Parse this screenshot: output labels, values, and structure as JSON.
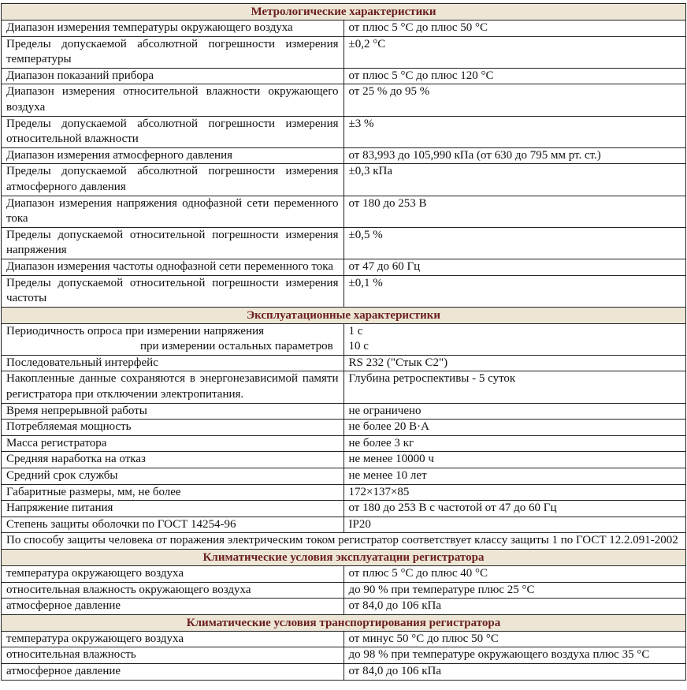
{
  "sections": [
    {
      "title": "Метрологические характеристики",
      "rows": [
        [
          "Диапазон измерения температуры окружающего воздуха",
          "от плюс 5 °C до плюс 50 °C"
        ],
        [
          "Пределы допускаемой абсолютной погрешности измерения температуры",
          "±0,2 °C"
        ],
        [
          "Диапазон показаний прибора",
          "от плюс 5 °C до плюс 120 °C"
        ],
        [
          "Диапазон измерения  относительной  влажности окружающего  воздуха",
          "от  25 %  до 95 %"
        ],
        [
          "Пределы допускаемой абсолютной погрешности измерения относительной влажности",
          "±3 %"
        ],
        [
          "Диапазон  измерения  атмосферного  давления",
          "от 83,993 до 105,990 кПа (от 630 до 795 мм рт. ст.)"
        ],
        [
          "Пределы допускаемой абсолютной погрешности измерения атмосферного давления",
          "±0,3 кПа"
        ],
        [
          "Диапазон измерения напряжения однофазной сети переменного тока",
          "от 180 до 253 В"
        ],
        [
          "Пределы допускаемой  относительной погрешности измерения напряжения",
          "±0,5 %"
        ],
        [
          "Диапазон измерения частоты однофазной сети переменного тока",
          "от 47 до 60 Гц"
        ],
        [
          "Пределы допускаемой относительной погрешности измерения частоты",
          "±0,1 %"
        ]
      ]
    },
    {
      "title": "Эксплуатационные характеристики",
      "polling": {
        "label1": "Периодичность опроса при измерении напряжения",
        "label2": "при измерении остальных параметров",
        "value1": "1 с",
        "value2": "10 с"
      },
      "rows": [
        [
          "Последовательный интерфейс",
          "RS 232 (\"Стык С2\")"
        ],
        [
          "Накопленные данные  сохраняются в энергонезависимой памяти регистратора при отключении электропитания.",
          "Глубина ретроспективы  -  5 суток"
        ],
        [
          "Время непрерывной работы",
          "не ограничено"
        ],
        [
          "Потребляемая мощность",
          "не более 20 В·А"
        ],
        [
          "Масса регистратора",
          "не более  3 кг"
        ],
        [
          "Средняя  наработка на отказ",
          "не менее 10000 ч"
        ],
        [
          "Средний срок службы",
          "не менее 10 лет"
        ],
        [
          "Габаритные размеры, мм, не более",
          "172×137×85"
        ],
        [
          "Напряжение питания",
          "от 180 до 253 В с частотой от 47 до 60 Гц"
        ],
        [
          "Степень защиты оболочки по ГОСТ 14254-96",
          "IP20"
        ]
      ],
      "note": "По способу защиты человека от поражения электрическим током регистратор соответствует классу защиты 1 по ГОСТ 12.2.091-2002"
    },
    {
      "title": "Климатические условия эксплуатации регистратора",
      "rows": [
        [
          "температура окружающего воздуха",
          "от плюс 5 °C до плюс 40 °C"
        ],
        [
          "относительная  влажность  окружающего  воздуха",
          "до  90 %  при  температуре  плюс 25 °C"
        ],
        [
          "атмосферное давление",
          "от 84,0 до 106 кПа"
        ]
      ]
    },
    {
      "title": "Климатические условия  транспортирования регистратора",
      "rows": [
        [
          "температура окружающего воздуха",
          "от минус 50 °C до плюс 50 °C"
        ],
        [
          "относительная влажность",
          "до 98 % при температуре окружающего воздуха плюс 35 °C"
        ],
        [
          "атмосферное давление",
          "от 84,0 до 106 кПа"
        ]
      ]
    }
  ],
  "colors": {
    "header_bg": "#ede6d6",
    "header_text": "#6b1f1f"
  }
}
